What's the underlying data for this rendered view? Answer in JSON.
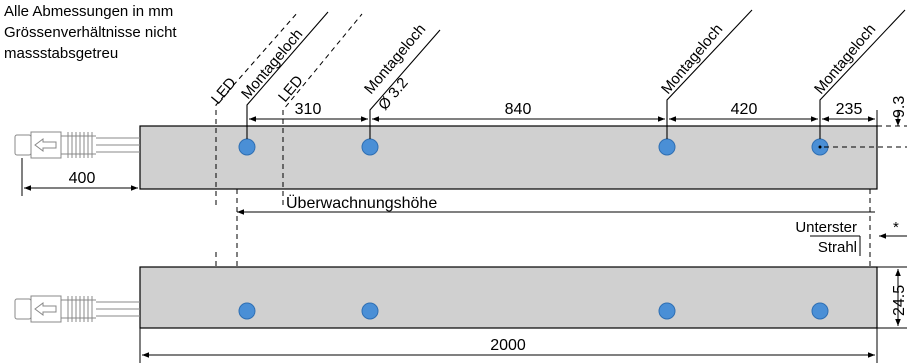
{
  "notes": [
    "Alle Abmessungen in mm",
    "Grössenverhältnisse nicht",
    "massstabsgetreu"
  ],
  "callouts": {
    "led_1": "LED",
    "led_2": "LED",
    "mounting_1": "Montageloch",
    "mounting_2": "Montageloch",
    "mounting_2_sub": "Ø 3.2",
    "mounting_3": "Montageloch",
    "mounting_4": "Montageloch"
  },
  "dimensions": {
    "cable_offset": "400",
    "hole_spacing_1": "310",
    "hole_spacing_2": "840",
    "hole_spacing_3": "420",
    "end_offset": "235",
    "hole_height": "9.3",
    "profile_height": "24.5",
    "total_length": "2000"
  },
  "labels": {
    "monitoring_height": "Überwachnungshöhe",
    "lowest_beam_1": "Unterster",
    "lowest_beam_2": "Strahl",
    "asterisk": "*"
  },
  "colors": {
    "profile_fill": "#d0d0d0",
    "hole_fill": "#4a8fd6",
    "line": "#000000"
  }
}
